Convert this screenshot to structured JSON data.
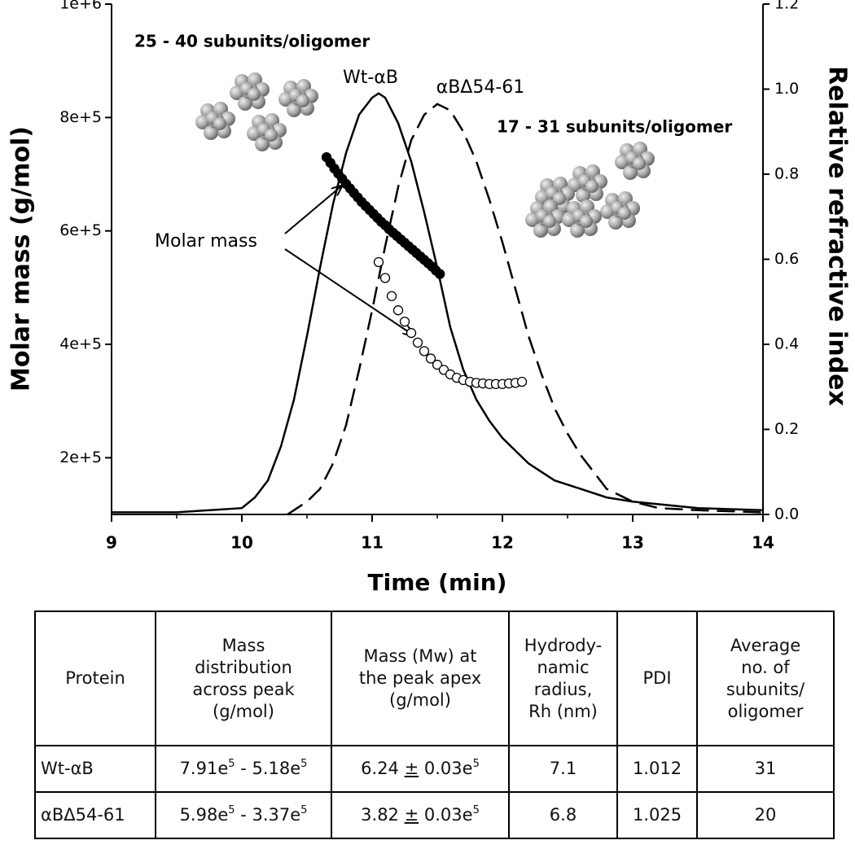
{
  "chart_data": {
    "type": "line",
    "xlabel": "Time (min)",
    "ylabel": "Molar mass (g/mol)",
    "y2label": "Relative refractive index",
    "xlim": [
      9,
      14
    ],
    "xticks": [
      9,
      10,
      11,
      12,
      13,
      14
    ],
    "xminorticks": [
      9.5,
      10.5,
      11.5,
      12.5,
      13.5
    ],
    "ylim": [
      100000,
      1000000
    ],
    "yticks": [
      {
        "value": 200000,
        "label": "2e+5"
      },
      {
        "value": 400000,
        "label": "4e+5"
      },
      {
        "value": 600000,
        "label": "6e+5"
      },
      {
        "value": 800000,
        "label": "8e+5"
      },
      {
        "value": 1000000,
        "label": "1e+6"
      }
    ],
    "y2lim": [
      0,
      1.2
    ],
    "y2ticks": [
      {
        "value": 0,
        "label": "0.0"
      },
      0.2,
      0.4,
      0.6,
      0.8,
      {
        "value": 1,
        "label": "1.0"
      },
      1.2
    ],
    "series": [
      {
        "color": "#000000",
        "line": "solid",
        "axis": "y2",
        "x": [
          9,
          9.5,
          10,
          10.1,
          10.2,
          10.3,
          10.4,
          10.5,
          10.6,
          10.7,
          10.8,
          10.9,
          11.0,
          11.05,
          11.1,
          11.2,
          11.3,
          11.4,
          11.5,
          11.6,
          11.7,
          11.8,
          11.9,
          12.0,
          12.2,
          12.4,
          12.6,
          12.8,
          13.0,
          13.5,
          14
        ],
        "values": [
          0.005,
          0.005,
          0.015,
          0.04,
          0.08,
          0.16,
          0.27,
          0.42,
          0.58,
          0.73,
          0.85,
          0.94,
          0.98,
          0.99,
          0.98,
          0.92,
          0.83,
          0.71,
          0.58,
          0.44,
          0.34,
          0.27,
          0.22,
          0.18,
          0.12,
          0.08,
          0.06,
          0.04,
          0.03,
          0.015,
          0.01
        ]
      },
      {
        "color": "#000000",
        "line": "dashed",
        "axis": "y2",
        "x": [
          10.35,
          10.4,
          10.5,
          10.6,
          10.7,
          10.8,
          10.9,
          11.0,
          11.1,
          11.2,
          11.3,
          11.4,
          11.5,
          11.6,
          11.7,
          11.8,
          11.9,
          12.0,
          12.1,
          12.2,
          12.3,
          12.4,
          12.5,
          12.6,
          12.8,
          13.0,
          13.2,
          13.5,
          14
        ],
        "values": [
          0,
          0.01,
          0.03,
          0.06,
          0.12,
          0.21,
          0.34,
          0.48,
          0.63,
          0.77,
          0.88,
          0.94,
          0.965,
          0.95,
          0.9,
          0.83,
          0.74,
          0.64,
          0.53,
          0.42,
          0.33,
          0.25,
          0.19,
          0.14,
          0.06,
          0.03,
          0.015,
          0.01,
          0.005
        ]
      },
      {
        "color": "#000000",
        "marker": "filled",
        "axis": "y",
        "x": [
          10.65,
          10.68,
          10.71,
          10.74,
          10.77,
          10.8,
          10.83,
          10.86,
          10.89,
          10.92,
          10.95,
          10.98,
          11.01,
          11.04,
          11.07,
          11.1,
          11.13,
          11.16,
          11.19,
          11.22,
          11.25,
          11.28,
          11.31,
          11.34,
          11.37,
          11.4,
          11.43,
          11.46,
          11.49,
          11.52
        ],
        "values": [
          730000,
          720000,
          710000,
          701000,
          692000,
          683000,
          675000,
          667000,
          659000,
          651000,
          644000,
          637000,
          630000,
          623000,
          616000,
          610000,
          603000,
          597000,
          591000,
          585000,
          579000,
          573000,
          567000,
          561000,
          555000,
          549000,
          543000,
          537000,
          530000,
          524000
        ]
      },
      {
        "color": "#000000",
        "marker": "open",
        "axis": "y",
        "x": [
          11.05,
          11.1,
          11.15,
          11.2,
          11.25,
          11.3,
          11.35,
          11.4,
          11.45,
          11.5,
          11.55,
          11.6,
          11.65,
          11.7,
          11.75,
          11.8,
          11.85,
          11.9,
          11.95,
          12.0,
          12.05,
          12.1,
          12.15
        ],
        "values": [
          545000,
          517000,
          485000,
          460000,
          440000,
          420000,
          403000,
          388000,
          375000,
          364000,
          355000,
          347000,
          341000,
          337000,
          334000,
          332000,
          331000,
          330000,
          330000,
          330000,
          331000,
          332000,
          334000
        ]
      }
    ],
    "annotations": [
      "25 - 40 subunits/oligomer",
      "Wt-αB",
      "αBΔ54-61",
      "17 -  31 subunits/oligomer",
      "Molar mass"
    ]
  },
  "table": {
    "header": [
      [
        "Protein"
      ],
      [
        "Mass",
        "distribution",
        "across peak",
        "(g/mol)"
      ],
      [
        "Mass (Mw) at",
        "the peak apex",
        "(g/mol)"
      ],
      [
        "Hydrody-",
        "namic",
        "radius,",
        "Rh (nm)"
      ],
      [
        "PDI"
      ],
      [
        "Average",
        "no. of",
        "subunits/",
        "oligomer"
      ]
    ],
    "rows": [
      [
        "Wt-αB",
        [
          {
            "text": "7.91e"
          },
          {
            "text": "5",
            "format": "sup"
          },
          {
            "text": " - 5.18e"
          },
          {
            "text": "5",
            "format": "sup"
          }
        ],
        [
          {
            "text": "6.24 "
          },
          {
            "text": "±",
            "format": "underline"
          },
          {
            "text": " 0.03e"
          },
          {
            "text": "5",
            "format": "sup"
          }
        ],
        7.1,
        1.012,
        31
      ],
      [
        "αBΔ54-61",
        [
          {
            "text": "5.98e"
          },
          {
            "text": "5",
            "format": "sup"
          },
          {
            "text": " - 3.37e"
          },
          {
            "text": "5",
            "format": "sup"
          }
        ],
        [
          {
            "text": "3.82 "
          },
          {
            "text": "±",
            "format": "underline"
          },
          {
            "text": " 0.03e"
          },
          {
            "text": "5",
            "format": "sup"
          }
        ],
        6.8,
        1.025,
        20
      ]
    ]
  }
}
